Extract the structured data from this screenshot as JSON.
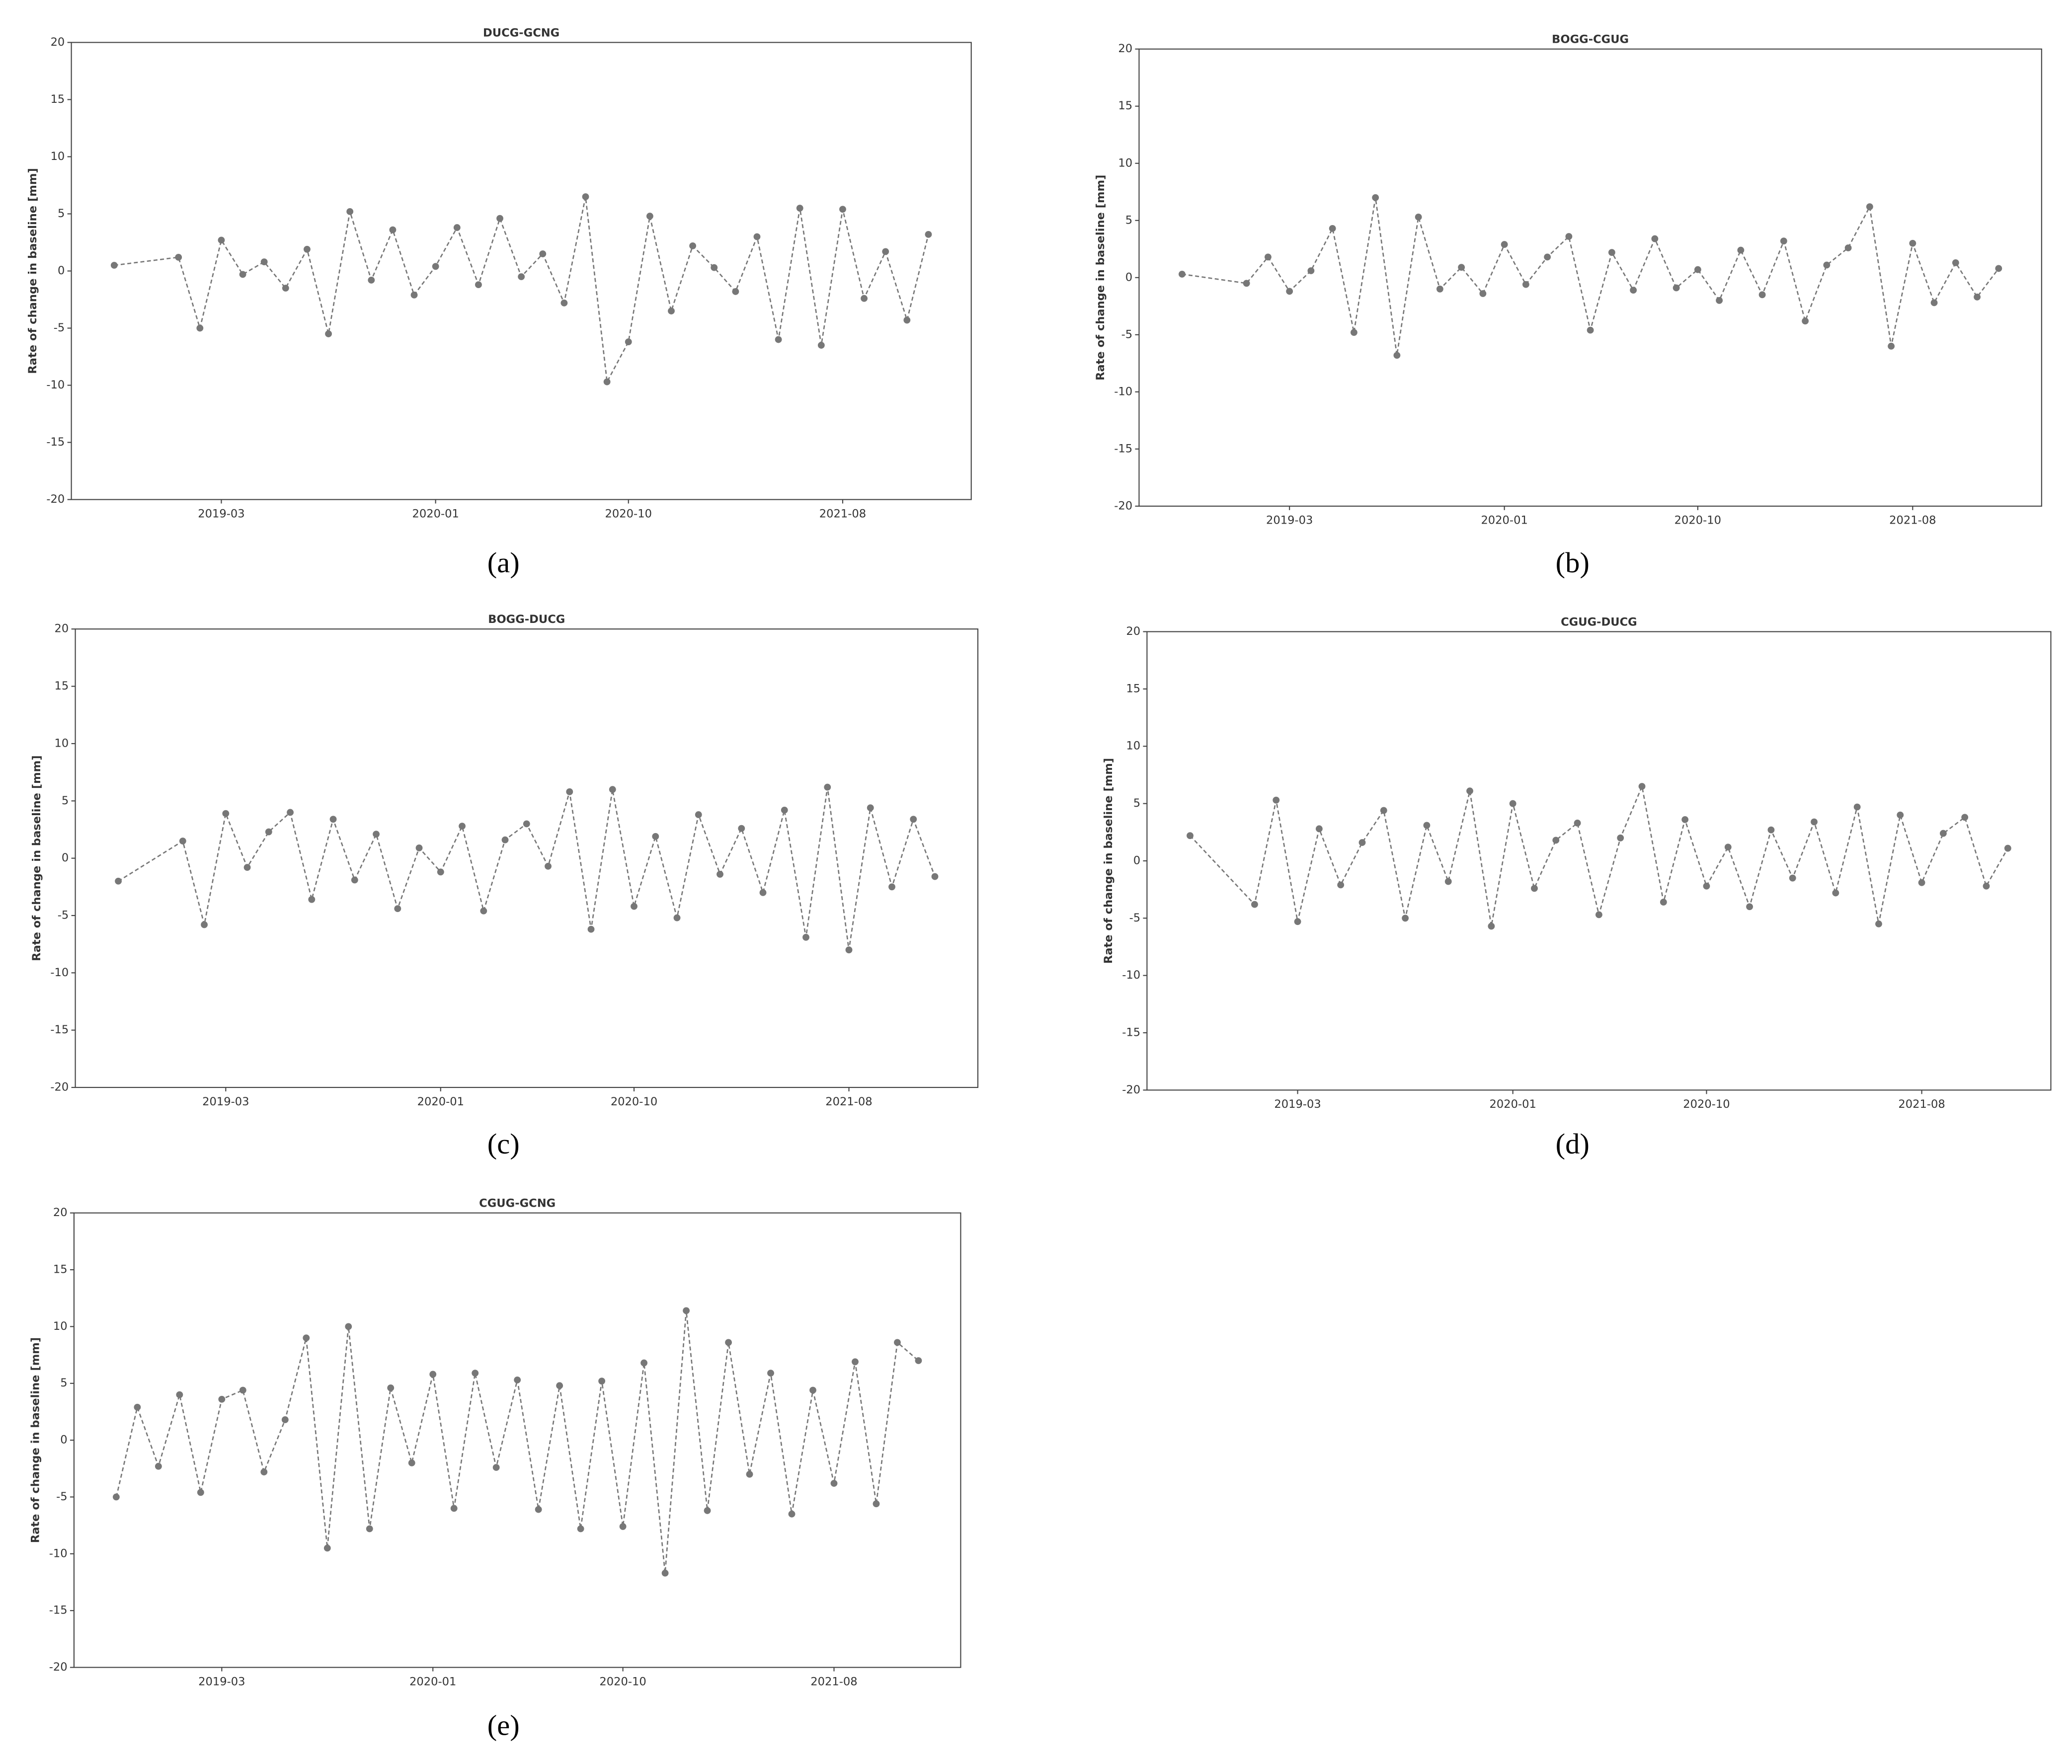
{
  "chart_data": [
    {
      "type": "line",
      "title": "DUCG-GCNG",
      "ylabel": "Rate of change in baseline [mm]",
      "caption": "(a)",
      "x": [
        "2018-10",
        "2019-01",
        "2019-02",
        "2019-03",
        "2019-04",
        "2019-05",
        "2019-06",
        "2019-07",
        "2019-08",
        "2019-09",
        "2019-10",
        "2019-11",
        "2019-12",
        "2020-01",
        "2020-02",
        "2020-03",
        "2020-04",
        "2020-05",
        "2020-06",
        "2020-07",
        "2020-08",
        "2020-09",
        "2020-10",
        "2020-11",
        "2020-12",
        "2021-01",
        "2021-02",
        "2021-03",
        "2021-04",
        "2021-05",
        "2021-06",
        "2021-07",
        "2021-08",
        "2021-09",
        "2021-10",
        "2021-11",
        "2021-12"
      ],
      "values": [
        0.5,
        1.2,
        -5.0,
        2.7,
        -0.3,
        0.8,
        -1.5,
        1.9,
        -5.5,
        5.2,
        -0.8,
        3.6,
        -2.1,
        0.4,
        3.8,
        -1.2,
        4.6,
        -0.5,
        1.5,
        -2.8,
        6.5,
        -9.7,
        -6.2,
        4.8,
        -3.5,
        2.2,
        0.3,
        -1.8,
        3.0,
        -6.0,
        5.5,
        -6.5,
        5.4,
        -2.4,
        1.7,
        -4.3,
        3.2
      ],
      "color": "#777777",
      "xlim": [
        "2018-08",
        "2022-02"
      ],
      "ylim": [
        -20,
        20
      ],
      "xticks": [
        "2019-03",
        "2020-01",
        "2020-10",
        "2021-08"
      ],
      "yticks": [
        -20,
        -15,
        -10,
        -5,
        0,
        5,
        10,
        15,
        20
      ]
    },
    {
      "type": "line",
      "title": "BOGG-CGUG",
      "ylabel": "Rate of change in baseline [mm]",
      "caption": "(b)",
      "x": [
        "2018-10",
        "2019-01",
        "2019-02",
        "2019-03",
        "2019-04",
        "2019-05",
        "2019-06",
        "2019-07",
        "2019-08",
        "2019-09",
        "2019-10",
        "2019-11",
        "2019-12",
        "2020-01",
        "2020-02",
        "2020-03",
        "2020-04",
        "2020-05",
        "2020-06",
        "2020-07",
        "2020-08",
        "2020-09",
        "2020-10",
        "2020-11",
        "2020-12",
        "2021-01",
        "2021-02",
        "2021-03",
        "2021-04",
        "2021-05",
        "2021-06",
        "2021-07",
        "2021-08",
        "2021-09",
        "2021-10",
        "2021-11",
        "2021-12"
      ],
      "values": [
        0.3,
        -0.5,
        1.8,
        -1.2,
        0.6,
        4.3,
        -4.8,
        7.0,
        -6.8,
        5.3,
        -1.0,
        0.9,
        -1.4,
        2.9,
        -0.6,
        1.8,
        3.6,
        -4.6,
        2.2,
        -1.1,
        3.4,
        -0.9,
        0.7,
        -2.0,
        2.4,
        -1.5,
        3.2,
        -3.8,
        1.1,
        2.6,
        6.2,
        -6.0,
        3.0,
        -2.2,
        1.3,
        -1.7,
        0.8
      ],
      "color": "#777777",
      "xlim": [
        "2018-08",
        "2022-02"
      ],
      "ylim": [
        -20,
        20
      ],
      "xticks": [
        "2019-03",
        "2020-01",
        "2020-10",
        "2021-08"
      ],
      "yticks": [
        -20,
        -15,
        -10,
        -5,
        0,
        5,
        10,
        15,
        20
      ]
    },
    {
      "type": "line",
      "title": "BOGG-DUCG",
      "ylabel": "Rate of change in baseline [mm]",
      "caption": "(c)",
      "x": [
        "2018-10",
        "2019-01",
        "2019-02",
        "2019-03",
        "2019-04",
        "2019-05",
        "2019-06",
        "2019-07",
        "2019-08",
        "2019-09",
        "2019-10",
        "2019-11",
        "2019-12",
        "2020-01",
        "2020-02",
        "2020-03",
        "2020-04",
        "2020-05",
        "2020-06",
        "2020-07",
        "2020-08",
        "2020-09",
        "2020-10",
        "2020-11",
        "2020-12",
        "2021-01",
        "2021-02",
        "2021-03",
        "2021-04",
        "2021-05",
        "2021-06",
        "2021-07",
        "2021-08",
        "2021-09",
        "2021-10",
        "2021-11",
        "2021-12"
      ],
      "values": [
        -2.0,
        1.5,
        -5.8,
        3.9,
        -0.8,
        2.3,
        4.0,
        -3.6,
        3.4,
        -1.9,
        2.1,
        -4.4,
        0.9,
        -1.2,
        2.8,
        -4.6,
        1.6,
        3.0,
        -0.7,
        5.8,
        -6.2,
        6.0,
        -4.2,
        1.9,
        -5.2,
        3.8,
        -1.4,
        2.6,
        -3.0,
        4.2,
        -6.9,
        6.2,
        -8.0,
        4.4,
        -2.5,
        3.4,
        -1.6
      ],
      "color": "#777777",
      "xlim": [
        "2018-08",
        "2022-02"
      ],
      "ylim": [
        -20,
        20
      ],
      "xticks": [
        "2019-03",
        "2020-01",
        "2020-10",
        "2021-08"
      ],
      "yticks": [
        -20,
        -15,
        -10,
        -5,
        0,
        5,
        10,
        15,
        20
      ]
    },
    {
      "type": "line",
      "title": "CGUG-DUCG",
      "ylabel": "Rate of change in baseline [mm]",
      "caption": "(d)",
      "x": [
        "2018-10",
        "2019-01",
        "2019-02",
        "2019-03",
        "2019-04",
        "2019-05",
        "2019-06",
        "2019-07",
        "2019-08",
        "2019-09",
        "2019-10",
        "2019-11",
        "2019-12",
        "2020-01",
        "2020-02",
        "2020-03",
        "2020-04",
        "2020-05",
        "2020-06",
        "2020-07",
        "2020-08",
        "2020-09",
        "2020-10",
        "2020-11",
        "2020-12",
        "2021-01",
        "2021-02",
        "2021-03",
        "2021-04",
        "2021-05",
        "2021-06",
        "2021-07",
        "2021-08",
        "2021-09",
        "2021-10",
        "2021-11",
        "2021-12"
      ],
      "values": [
        2.2,
        -3.8,
        5.3,
        -5.3,
        2.8,
        -2.1,
        1.6,
        4.4,
        -5.0,
        3.1,
        -1.8,
        6.1,
        -5.7,
        5.0,
        -2.4,
        1.8,
        3.3,
        -4.7,
        2.0,
        6.5,
        -3.6,
        3.6,
        -2.2,
        1.2,
        -4.0,
        2.7,
        -1.5,
        3.4,
        -2.8,
        4.7,
        -5.5,
        4.0,
        -1.9,
        2.4,
        3.8,
        -2.2,
        1.1
      ],
      "color": "#777777",
      "xlim": [
        "2018-08",
        "2022-02"
      ],
      "ylim": [
        -20,
        20
      ],
      "xticks": [
        "2019-03",
        "2020-01",
        "2020-10",
        "2021-08"
      ],
      "yticks": [
        -20,
        -15,
        -10,
        -5,
        0,
        5,
        10,
        15,
        20
      ]
    },
    {
      "type": "line",
      "title": "CGUG-GCNG",
      "ylabel": "Rate of change in baseline [mm]",
      "caption": "(e)",
      "x": [
        "2018-10",
        "2018-11",
        "2018-12",
        "2019-01",
        "2019-02",
        "2019-03",
        "2019-04",
        "2019-05",
        "2019-06",
        "2019-07",
        "2019-08",
        "2019-09",
        "2019-10",
        "2019-11",
        "2019-12",
        "2020-01",
        "2020-02",
        "2020-03",
        "2020-04",
        "2020-05",
        "2020-06",
        "2020-07",
        "2020-08",
        "2020-09",
        "2020-10",
        "2020-11",
        "2020-12",
        "2021-01",
        "2021-02",
        "2021-03",
        "2021-04",
        "2021-05",
        "2021-06",
        "2021-07",
        "2021-08",
        "2021-09",
        "2021-10",
        "2021-11",
        "2021-12"
      ],
      "values": [
        -5.0,
        2.9,
        -2.3,
        4.0,
        -4.6,
        3.6,
        4.4,
        -2.8,
        1.8,
        9.0,
        -9.5,
        10.0,
        -7.8,
        4.6,
        -2.0,
        5.8,
        -6.0,
        5.9,
        -2.4,
        5.3,
        -6.1,
        4.8,
        -7.8,
        5.2,
        -7.6,
        6.8,
        -11.7,
        11.4,
        -6.2,
        8.6,
        -3.0,
        5.9,
        -6.5,
        4.4,
        -3.8,
        6.9,
        -5.6,
        8.6,
        7.0
      ],
      "color": "#777777",
      "xlim": [
        "2018-08",
        "2022-02"
      ],
      "ylim": [
        -20,
        20
      ],
      "xticks": [
        "2019-03",
        "2020-01",
        "2020-10",
        "2021-08"
      ],
      "yticks": [
        -20,
        -15,
        -10,
        -5,
        0,
        5,
        10,
        15,
        20
      ]
    }
  ]
}
